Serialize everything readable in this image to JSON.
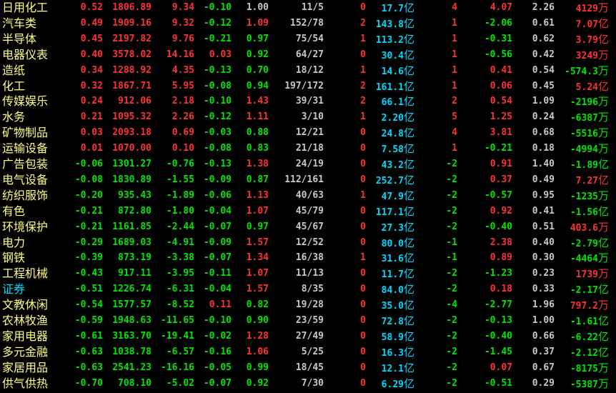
{
  "colors": {
    "up": "#ff3232",
    "down": "#00e600",
    "flat": "#c8c8c8",
    "name": "#ffff80",
    "amount": "#00d8ff",
    "highlight": "#00d8ff"
  },
  "rows": [
    {
      "name": "日用化工",
      "cells": [
        "0.52",
        "1806.89",
        "9.34",
        "-0.10",
        "1.00",
        "11/5",
        "0",
        "17.7",
        "4",
        "4.07",
        "2.26",
        "4129"
      ],
      "amount_unit": "亿",
      "flow_unit": "万"
    },
    {
      "name": "汽车类",
      "cells": [
        "0.49",
        "1909.16",
        "9.32",
        "-0.12",
        "1.09",
        "152/78",
        "2",
        "143.8",
        "1",
        "-2.06",
        "0.61",
        "7.07"
      ],
      "amount_unit": "亿",
      "flow_unit": "亿"
    },
    {
      "name": "半导体",
      "cells": [
        "0.45",
        "2197.82",
        "9.76",
        "-0.21",
        "0.97",
        "75/54",
        "1",
        "113.2",
        "1",
        "-0.31",
        "0.62",
        "3.79"
      ],
      "amount_unit": "亿",
      "flow_unit": "亿"
    },
    {
      "name": "电器仪表",
      "cells": [
        "0.40",
        "3578.02",
        "14.16",
        "0.03",
        "0.92",
        "64/27",
        "0",
        "30.4",
        "1",
        "-0.56",
        "0.42",
        "3249"
      ],
      "amount_unit": "亿",
      "flow_unit": "万"
    },
    {
      "name": "造纸",
      "cells": [
        "0.34",
        "1288.92",
        "4.35",
        "-0.13",
        "0.70",
        "18/12",
        "1",
        "14.6",
        "1",
        "0.41",
        "0.54",
        "-574.3"
      ],
      "amount_unit": "亿",
      "flow_unit": "万"
    },
    {
      "name": "化工",
      "cells": [
        "0.32",
        "1867.71",
        "5.95",
        "-0.08",
        "0.94",
        "197/172",
        "2",
        "161.1",
        "1",
        "0.06",
        "0.45",
        "5.24"
      ],
      "amount_unit": "亿",
      "flow_unit": "亿"
    },
    {
      "name": "传媒娱乐",
      "cells": [
        "0.24",
        "912.06",
        "2.18",
        "-0.10",
        "1.43",
        "39/31",
        "2",
        "66.1",
        "2",
        "0.54",
        "1.09",
        "-2196"
      ],
      "amount_unit": "亿",
      "flow_unit": "万"
    },
    {
      "name": "水务",
      "cells": [
        "0.21",
        "1095.32",
        "2.26",
        "-0.12",
        "1.11",
        "3/10",
        "1",
        "2.20",
        "5",
        "1.25",
        "0.24",
        "-6387"
      ],
      "amount_unit": "亿",
      "flow_unit": "万"
    },
    {
      "name": "矿物制品",
      "cells": [
        "0.03",
        "2093.18",
        "0.69",
        "-0.03",
        "0.88",
        "12/21",
        "0",
        "24.8",
        "4",
        "3.81",
        "0.68",
        "-5516"
      ],
      "amount_unit": "亿",
      "flow_unit": "万"
    },
    {
      "name": "运输设备",
      "cells": [
        "0.01",
        "1070.00",
        "0.10",
        "-0.08",
        "0.83",
        "21/18",
        "0",
        "7.58",
        "1",
        "-0.21",
        "0.18",
        "-4994"
      ],
      "amount_unit": "亿",
      "flow_unit": "万"
    },
    {
      "name": "广告包装",
      "cells": [
        "-0.06",
        "1301.27",
        "-0.76",
        "-0.13",
        "1.38",
        "24/19",
        "0",
        "43.2",
        "-2",
        "0.91",
        "1.40",
        "-1.89"
      ],
      "amount_unit": "亿",
      "flow_unit": "亿"
    },
    {
      "name": "电气设备",
      "cells": [
        "-0.08",
        "1830.89",
        "-1.55",
        "-0.09",
        "0.87",
        "112/161",
        "0",
        "252.7",
        "-2",
        "0.37",
        "0.49",
        "7.27"
      ],
      "amount_unit": "亿",
      "flow_unit": "亿"
    },
    {
      "name": "纺织服饰",
      "cells": [
        "-0.20",
        "935.43",
        "-1.89",
        "-0.06",
        "1.13",
        "40/63",
        "1",
        "47.9",
        "-2",
        "-0.57",
        "0.95",
        "-1235"
      ],
      "amount_unit": "亿",
      "flow_unit": "万"
    },
    {
      "name": "有色",
      "cells": [
        "-0.21",
        "872.80",
        "-1.80",
        "-0.04",
        "1.07",
        "45/79",
        "0",
        "117.1",
        "-2",
        "0.92",
        "0.41",
        "-1.56"
      ],
      "amount_unit": "亿",
      "flow_unit": "亿"
    },
    {
      "name": "环境保护",
      "cells": [
        "-0.21",
        "1161.85",
        "-2.44",
        "-0.07",
        "0.97",
        "45/67",
        "0",
        "27.3",
        "-2",
        "-0.40",
        "0.51",
        "403.6"
      ],
      "amount_unit": "亿",
      "flow_unit": "万"
    },
    {
      "name": "电力",
      "cells": [
        "-0.29",
        "1689.03",
        "-4.91",
        "-0.09",
        "1.57",
        "12/52",
        "0",
        "80.0",
        "-1",
        "2.38",
        "0.40",
        "-2.79"
      ],
      "amount_unit": "亿",
      "flow_unit": "亿"
    },
    {
      "name": "钢铁",
      "cells": [
        "-0.39",
        "873.19",
        "-3.38",
        "-0.07",
        "1.34",
        "16/38",
        "1",
        "31.6",
        "-1",
        "0.89",
        "0.30",
        "-4464"
      ],
      "amount_unit": "亿",
      "flow_unit": "万"
    },
    {
      "name": "工程机械",
      "cells": [
        "-0.43",
        "917.11",
        "-3.95",
        "-0.11",
        "1.07",
        "11/13",
        "0",
        "11.7",
        "-2",
        "-1.23",
        "0.23",
        "1739"
      ],
      "amount_unit": "亿",
      "flow_unit": "万"
    },
    {
      "name": "证券",
      "highlight": true,
      "cells": [
        "-0.51",
        "1226.74",
        "-6.31",
        "-0.04",
        "1.57",
        "8/35",
        "0",
        "84.0",
        "-2",
        "0.18",
        "0.33",
        "-2.17"
      ],
      "amount_unit": "亿",
      "flow_unit": "亿"
    },
    {
      "name": "文教休闲",
      "cells": [
        "-0.54",
        "1577.57",
        "-8.52",
        "0.11",
        "0.82",
        "19/28",
        "0",
        "35.0",
        "-4",
        "-2.77",
        "1.96",
        "797.2"
      ],
      "amount_unit": "亿",
      "flow_unit": "万"
    },
    {
      "name": "农林牧渔",
      "cells": [
        "-0.59",
        "1948.63",
        "-11.65",
        "-0.10",
        "0.90",
        "23/59",
        "0",
        "72.8",
        "-2",
        "-0.13",
        "1.00",
        "-1.61"
      ],
      "amount_unit": "亿",
      "flow_unit": "亿"
    },
    {
      "name": "家用电器",
      "cells": [
        "-0.61",
        "3163.70",
        "-19.41",
        "-0.02",
        "1.28",
        "27/49",
        "0",
        "58.9",
        "-2",
        "-0.40",
        "0.66",
        "-6.22"
      ],
      "amount_unit": "亿",
      "flow_unit": "亿"
    },
    {
      "name": "多元金融",
      "cells": [
        "-0.63",
        "1038.78",
        "-6.57",
        "-0.16",
        "1.06",
        "5/25",
        "0",
        "16.3",
        "-2",
        "-1.45",
        "0.37",
        "-2.12"
      ],
      "amount_unit": "亿",
      "flow_unit": "亿"
    },
    {
      "name": "家居用品",
      "cells": [
        "-0.63",
        "2541.23",
        "-16.16",
        "-0.05",
        "0.99",
        "18/45",
        "0",
        "12.1",
        "-2",
        "0.07",
        "0.67",
        "-8175"
      ],
      "amount_unit": "亿",
      "flow_unit": "万"
    },
    {
      "name": "供气供热",
      "cells": [
        "-0.70",
        "708.10",
        "-5.02",
        "-0.07",
        "0.92",
        "7/30",
        "0",
        "6.29",
        "-2",
        "-0.51",
        "0.29",
        "-5387"
      ],
      "amount_unit": "亿",
      "flow_unit": "万"
    }
  ]
}
